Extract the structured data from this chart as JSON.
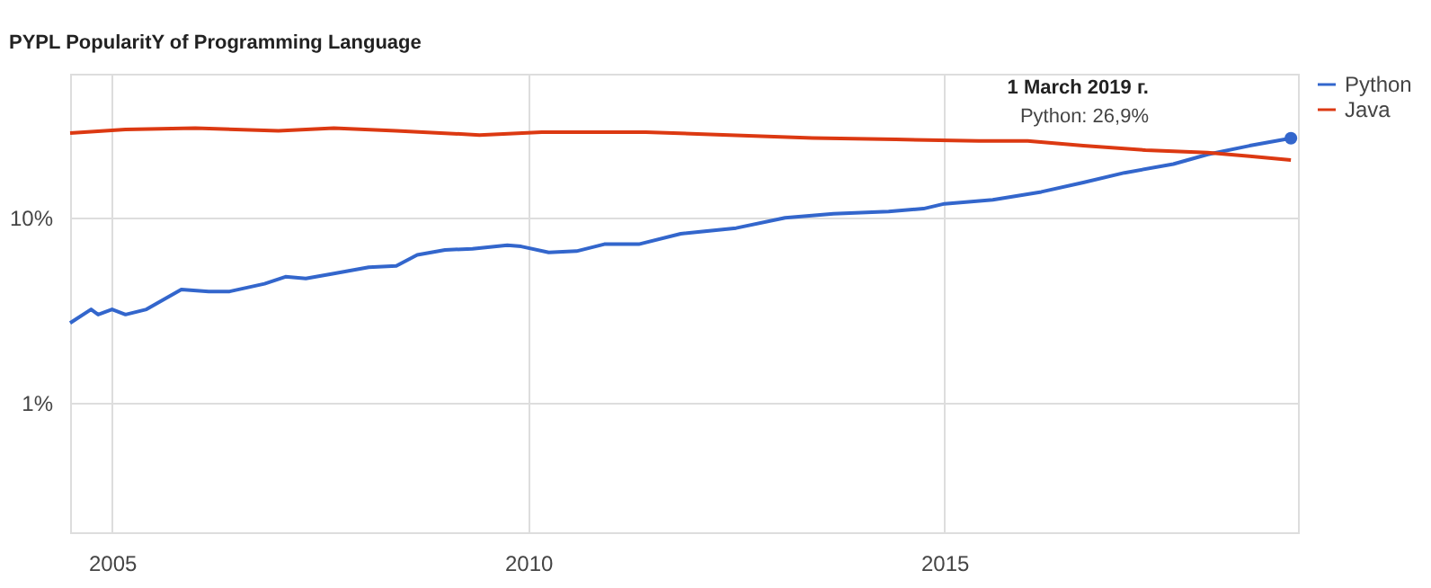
{
  "chart_data": {
    "type": "line",
    "title": "PYPL PopularitY of Programming Language",
    "xlim": [
      "2004-07",
      "2019-04"
    ],
    "xticks": [
      {
        "value": "2005",
        "label": "2005"
      },
      {
        "value": "2010",
        "label": "2010"
      },
      {
        "value": "2015",
        "label": "2015"
      }
    ],
    "ylim": [
      0.2,
      60
    ],
    "yticks": [
      {
        "value": 1,
        "label": "1%"
      },
      {
        "value": 10,
        "label": "10%"
      }
    ],
    "log": "y",
    "grid": true,
    "legend": "right",
    "line_style": "solid",
    "series": [
      {
        "name": "Python",
        "color": "#3366cc",
        "x": [
          "2004-07",
          "2004-10",
          "2004-11",
          "2005-01",
          "2005-03",
          "2005-06",
          "2005-11",
          "2006-03",
          "2006-06",
          "2006-11",
          "2007-02",
          "2007-05",
          "2007-09",
          "2008-02",
          "2008-06",
          "2008-09",
          "2009-01",
          "2009-05",
          "2009-10",
          "2009-12",
          "2010-04",
          "2010-08",
          "2010-12",
          "2011-05",
          "2011-11",
          "2012-07",
          "2013-02",
          "2013-09",
          "2014-05",
          "2014-10",
          "2015-01",
          "2015-08",
          "2016-03",
          "2016-09",
          "2017-03",
          "2017-10",
          "2018-03",
          "2018-09",
          "2019-03"
        ],
        "values": [
          2.7,
          3.2,
          3.0,
          3.2,
          3.0,
          3.2,
          4.1,
          4.0,
          4.0,
          4.4,
          4.8,
          4.7,
          5.0,
          5.4,
          5.5,
          6.3,
          6.7,
          6.8,
          7.1,
          7.0,
          6.5,
          6.6,
          7.2,
          7.2,
          8.2,
          8.8,
          10,
          10.5,
          10.8,
          11.2,
          11.9,
          12.5,
          13.8,
          15.5,
          17.5,
          19.5,
          22,
          24.5,
          26.9
        ]
      },
      {
        "name": "Java",
        "color": "#dc3912",
        "x": [
          "2004-07",
          "2005-03",
          "2006-01",
          "2007-01",
          "2007-09",
          "2008-06",
          "2009-06",
          "2010-03",
          "2011-06",
          "2012-06",
          "2013-06",
          "2014-06",
          "2015-06",
          "2016-01",
          "2016-09",
          "2017-06",
          "2018-03",
          "2018-09",
          "2019-03"
        ],
        "values": [
          28.7,
          30,
          30.5,
          29.5,
          30.5,
          29.5,
          28,
          29,
          29,
          28,
          27,
          26.5,
          26,
          26,
          24.5,
          23.2,
          22.5,
          21.5,
          20.5
        ]
      }
    ],
    "annotations": [
      "1 March 2019 г.",
      "Python: 26,9%"
    ]
  }
}
